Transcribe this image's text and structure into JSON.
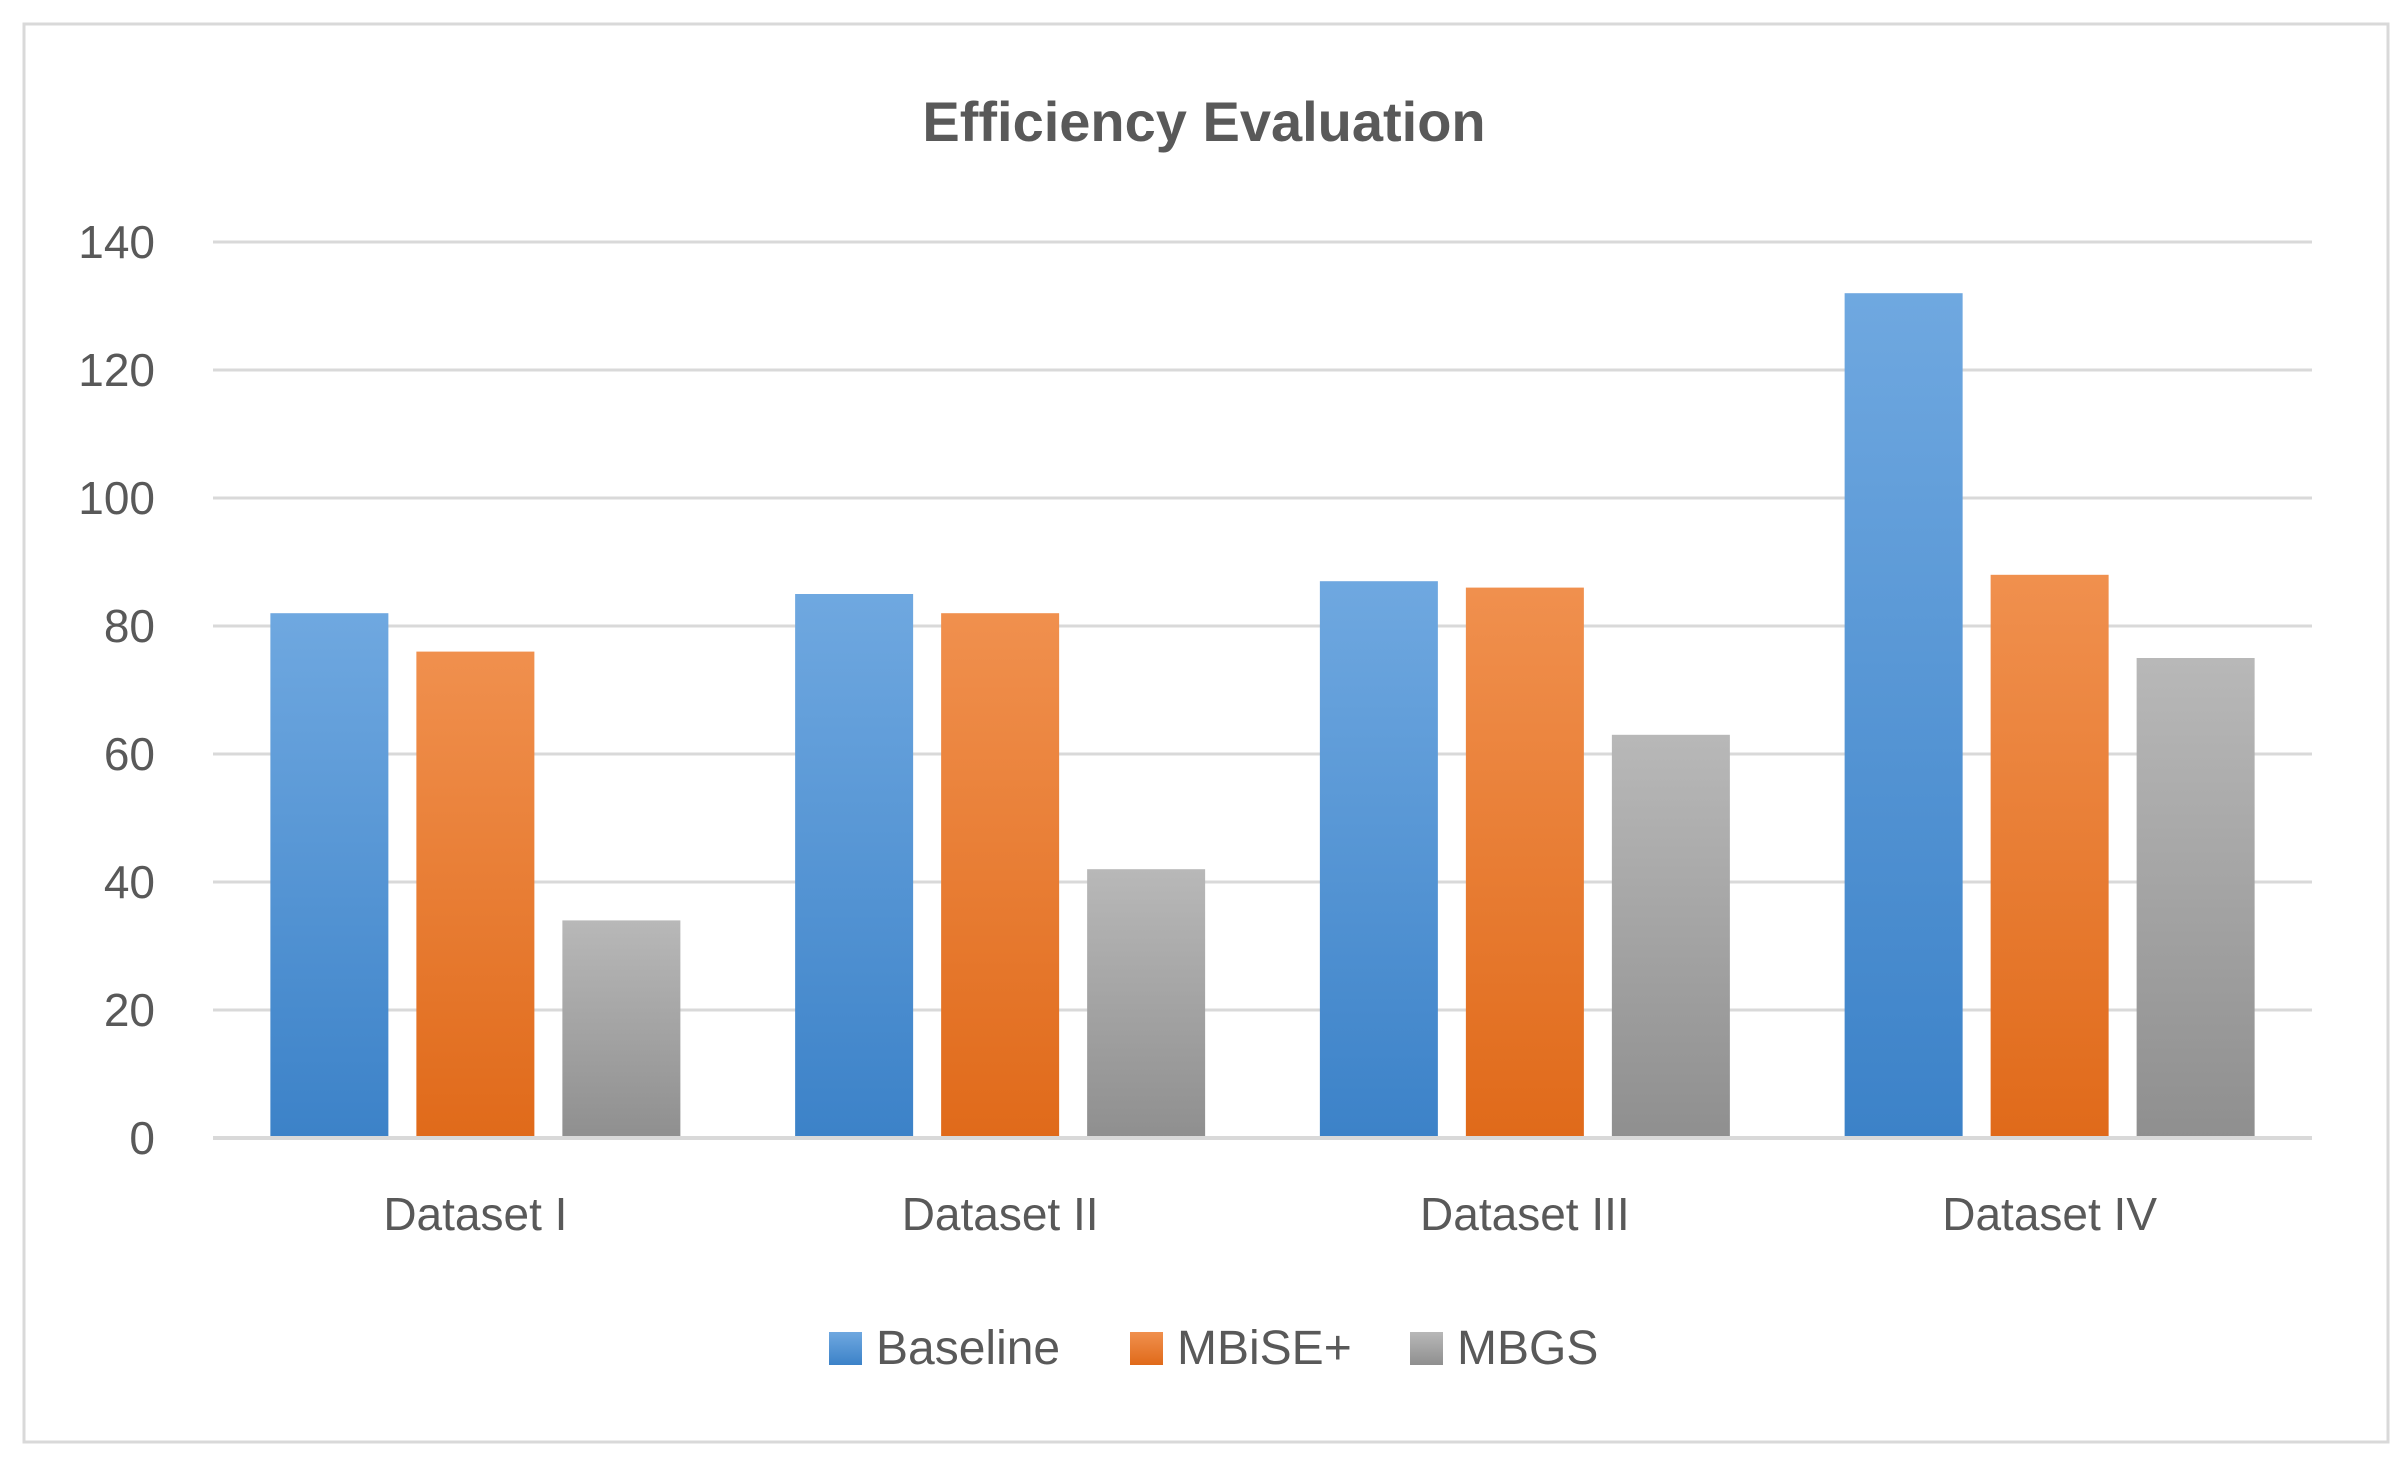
{
  "chart_data": {
    "type": "bar",
    "title": "Efficiency Evaluation",
    "categories": [
      "Dataset I",
      "Dataset II",
      "Dataset III",
      "Dataset IV"
    ],
    "series": [
      {
        "name": "Baseline",
        "values": [
          82,
          85,
          87,
          132
        ],
        "color": "#4a90d9",
        "color_top": "#6fa8e0",
        "color_bottom": "#3c82c8"
      },
      {
        "name": "MBiSE+",
        "values": [
          76,
          82,
          86,
          88
        ],
        "color": "#ed7d31",
        "color_top": "#f0904e",
        "color_bottom": "#e06a1a"
      },
      {
        "name": "MBGS",
        "values": [
          34,
          42,
          63,
          75
        ],
        "color": "#a5a5a5",
        "color_top": "#b8b8b8",
        "color_bottom": "#8f8f8f"
      }
    ],
    "yticks": [
      0,
      20,
      40,
      60,
      80,
      100,
      120,
      140
    ],
    "ylim": [
      0,
      140
    ],
    "xlabel": "",
    "ylabel": "",
    "grid": true,
    "legend": "bottom"
  }
}
